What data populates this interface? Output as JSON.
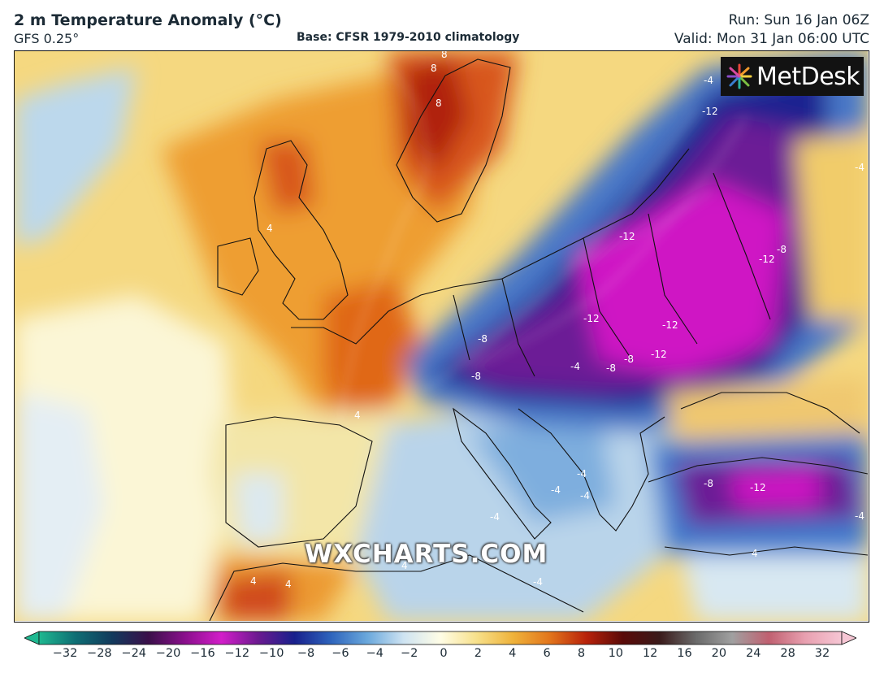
{
  "header": {
    "title": "2 m Temperature Anomaly (°C)",
    "model": "GFS 0.25°",
    "base": "Base: CFSR 1979-2010 climatology",
    "run": "Run: Sun 16 Jan 06Z",
    "valid": "Valid: Mon 31 Jan 06:00 UTC"
  },
  "map": {
    "logo_text": "MetDesk",
    "watermark": "WXCHARTS.COM",
    "contour_labels": [
      "8",
      "8",
      "8",
      "-4",
      "-12",
      "-4",
      "-12",
      "-8",
      "-12",
      "-8",
      "-12",
      "-12",
      "-8",
      "-8",
      "-12",
      "-8",
      "-4",
      "4",
      "4",
      "-4",
      "-4",
      "-4",
      "-8",
      "-12",
      "-4",
      "4",
      "4",
      "4",
      "-4",
      "-4",
      "4"
    ],
    "colors": {
      "cold_extreme": "#e010d0",
      "cold_purple": "#7a1a9c",
      "cold_navy": "#141a8c",
      "cold_blue": "#3f7fd0",
      "cool_light": "#d6e8f4",
      "neutral": "#fdfbe0",
      "warm_yellow": "#f3d36a",
      "warm_orange": "#ec9a2a",
      "hot_red": "#c8340c"
    }
  },
  "colorbar": {
    "ticks": [
      "−32",
      "−28",
      "−24",
      "−20",
      "−16",
      "−12",
      "−10",
      "−8",
      "−6",
      "−4",
      "−2",
      "0",
      "2",
      "4",
      "6",
      "8",
      "10",
      "12",
      "16",
      "20",
      "24",
      "28",
      "32"
    ],
    "stops": [
      "#1fb890",
      "#0e6e74",
      "#123a5c",
      "#3a0f4a",
      "#8a0f8c",
      "#d21ec9",
      "#6c1a90",
      "#18208c",
      "#2e64bc",
      "#6aa8dc",
      "#cfe4f2",
      "#fffde6",
      "#f7e08a",
      "#efb23a",
      "#e2751c",
      "#b8220a",
      "#5a0a08",
      "#3a1a1a",
      "#6a6a6a",
      "#a0a0a0",
      "#c06070",
      "#e8a0b0",
      "#f6c6d4"
    ]
  }
}
